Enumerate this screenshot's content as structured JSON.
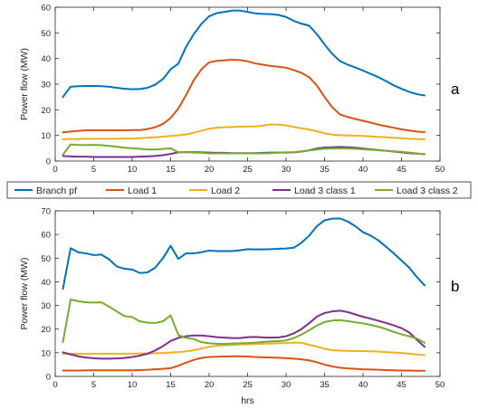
{
  "colors": {
    "Branch pf": "#0072bd",
    "Load 1": "#d95319",
    "Load 2": "#edb120",
    "Load 3 class 1": "#7e2f8e",
    "Load 3 class 2": "#77ac30"
  },
  "legend": {
    "entries": [
      "Branch pf",
      "Load 1",
      "Load 2",
      "Load 3 class 1",
      "Load 3 class 2"
    ],
    "placement": "between-panels"
  },
  "chart_data": [
    {
      "type": "line",
      "panel_label": "a",
      "ylabel": "Power flow (MW)",
      "xlabel": "",
      "xlim": [
        0,
        50
      ],
      "ylim": [
        0,
        60
      ],
      "xticks": [
        0,
        5,
        10,
        15,
        20,
        25,
        30,
        35,
        40,
        45,
        50
      ],
      "yticks": [
        0,
        10,
        20,
        30,
        40,
        50,
        60
      ],
      "grid": false,
      "x": [
        1,
        2,
        3,
        4,
        5,
        6,
        7,
        8,
        9,
        10,
        11,
        12,
        13,
        14,
        15,
        16,
        17,
        18,
        19,
        20,
        21,
        22,
        23,
        24,
        25,
        26,
        27,
        28,
        29,
        30,
        31,
        32,
        33,
        34,
        35,
        36,
        37,
        38,
        39,
        40,
        41,
        42,
        43,
        44,
        45,
        46,
        47,
        48
      ],
      "series": [
        {
          "name": "Branch pf",
          "values": [
            25,
            29,
            29.2,
            29.3,
            29.3,
            29.2,
            29,
            28.6,
            28.2,
            28,
            28.1,
            28.6,
            29.8,
            32,
            35.8,
            38,
            44.5,
            49.5,
            53.5,
            56.5,
            57.7,
            58.2,
            58.7,
            58.7,
            58.2,
            57.6,
            57.4,
            57.3,
            57,
            56.2,
            54.7,
            53.6,
            52.8,
            49.5,
            45.5,
            41.8,
            39,
            37.6,
            36.5,
            35.3,
            34,
            32.7,
            31.2,
            29.5,
            28.2,
            27,
            26.1,
            25.6
          ]
        },
        {
          "name": "Load 1",
          "values": [
            11.2,
            11.5,
            11.8,
            12,
            12,
            12,
            12,
            12,
            12,
            12.1,
            12.1,
            12.5,
            13.2,
            14.5,
            16.8,
            20.5,
            25.7,
            31.5,
            35.8,
            38.5,
            39.1,
            39.3,
            39.5,
            39.4,
            38.9,
            38.1,
            37.6,
            37.1,
            36.8,
            36.4,
            35.5,
            34.4,
            32.7,
            29.5,
            25,
            21,
            18.2,
            17.2,
            16.4,
            15.7,
            15,
            14.2,
            13.6,
            13,
            12.4,
            11.9,
            11.5,
            11.3
          ]
        },
        {
          "name": "Load 2",
          "values": [
            8.5,
            8.6,
            8.6,
            8.7,
            8.7,
            8.7,
            8.7,
            8.7,
            8.8,
            8.8,
            8.9,
            9.1,
            9.3,
            9.5,
            9.8,
            10,
            10.4,
            11,
            11.8,
            12.6,
            13,
            13.2,
            13.3,
            13.4,
            13.5,
            13.5,
            13.8,
            14.3,
            14.2,
            13.9,
            13.3,
            12.8,
            12.3,
            11.6,
            10.8,
            10.3,
            10.1,
            10,
            9.9,
            9.8,
            9.6,
            9.4,
            9.3,
            9.1,
            8.9,
            8.7,
            8.6,
            8.5
          ]
        },
        {
          "name": "Load 3 class 1",
          "values": [
            2,
            1.8,
            1.7,
            1.7,
            1.6,
            1.6,
            1.6,
            1.6,
            1.6,
            1.6,
            1.7,
            1.8,
            2,
            2.3,
            2.8,
            3.4,
            3.5,
            3.5,
            3.4,
            3.3,
            3.2,
            3.2,
            3.1,
            3.1,
            3.1,
            3.1,
            3.2,
            3.3,
            3.3,
            3.3,
            3.4,
            3.7,
            4.2,
            4.9,
            5.3,
            5.4,
            5.5,
            5.4,
            5.2,
            4.9,
            4.6,
            4.3,
            4,
            3.7,
            3.4,
            3.1,
            2.9,
            2.7
          ]
        },
        {
          "name": "Load 3 class 2",
          "values": [
            2.5,
            6.5,
            6.3,
            6.2,
            6.3,
            6.2,
            5.9,
            5.6,
            5.2,
            5,
            4.8,
            4.5,
            4.5,
            4.7,
            5,
            3.4,
            3.5,
            3.3,
            3.2,
            3,
            3,
            3,
            3,
            3,
            3,
            3,
            3,
            3.1,
            3.3,
            3.4,
            3.5,
            3.8,
            4.1,
            4.5,
            4.8,
            4.9,
            4.9,
            4.9,
            4.8,
            4.6,
            4.4,
            4.2,
            4,
            3.8,
            3.6,
            3.3,
            3,
            2.6
          ]
        }
      ]
    },
    {
      "type": "line",
      "panel_label": "b",
      "ylabel": "Power flow (MW)",
      "xlabel": "hrs",
      "xlim": [
        0,
        50
      ],
      "ylim": [
        0,
        70
      ],
      "xticks": [
        0,
        5,
        10,
        15,
        20,
        25,
        30,
        35,
        40,
        45,
        50
      ],
      "yticks": [
        0,
        10,
        20,
        30,
        40,
        50,
        60,
        70
      ],
      "grid": false,
      "x": [
        1,
        2,
        3,
        4,
        5,
        6,
        7,
        8,
        9,
        10,
        11,
        12,
        13,
        14,
        15,
        16,
        17,
        18,
        19,
        20,
        21,
        22,
        23,
        24,
        25,
        26,
        27,
        28,
        29,
        30,
        31,
        32,
        33,
        34,
        35,
        36,
        37,
        38,
        39,
        40,
        41,
        42,
        43,
        44,
        45,
        46,
        47,
        48
      ],
      "series": [
        {
          "name": "Branch pf",
          "values": [
            37,
            54.2,
            52.5,
            52,
            51.3,
            51.5,
            49.5,
            46.5,
            45.5,
            45.2,
            43.7,
            44,
            46,
            50,
            55.2,
            49.7,
            52,
            52,
            52.5,
            53.2,
            53,
            53,
            53,
            53.3,
            53.8,
            53.7,
            53.7,
            53.8,
            54,
            54.1,
            54.4,
            56.5,
            59.5,
            63.5,
            66,
            66.7,
            66.8,
            65.5,
            63.5,
            61,
            59.5,
            57.5,
            54.8,
            52,
            49,
            46,
            42,
            38.5
          ]
        },
        {
          "name": "Load 1",
          "values": [
            2.5,
            2.5,
            2.5,
            2.6,
            2.6,
            2.6,
            2.6,
            2.6,
            2.6,
            2.6,
            2.7,
            2.8,
            3,
            3.2,
            3.5,
            4.5,
            5.8,
            7,
            7.8,
            8.2,
            8.3,
            8.4,
            8.5,
            8.5,
            8.4,
            8.2,
            8.1,
            8,
            7.9,
            7.7,
            7.5,
            7.2,
            6.8,
            6,
            5,
            4.2,
            3.7,
            3.4,
            3.2,
            3,
            2.9,
            2.8,
            2.7,
            2.6,
            2.5,
            2.5,
            2.4,
            2.4
          ]
        },
        {
          "name": "Load 2",
          "values": [
            9.5,
            9.6,
            9.6,
            9.6,
            9.6,
            9.6,
            9.6,
            9.6,
            9.6,
            9.6,
            9.7,
            9.7,
            9.8,
            9.9,
            10.1,
            10.3,
            10.6,
            11.1,
            11.8,
            12.5,
            13,
            13.2,
            13.3,
            13.5,
            13.6,
            13.7,
            13.8,
            13.9,
            14,
            14.1,
            14.3,
            14.2,
            13.4,
            12.6,
            11.7,
            11.1,
            10.9,
            10.8,
            10.7,
            10.7,
            10.6,
            10.5,
            10.3,
            10.1,
            9.9,
            9.6,
            9.3,
            9
          ]
        },
        {
          "name": "Load 3 class 1",
          "values": [
            10.2,
            9.3,
            8.5,
            8,
            7.7,
            7.5,
            7.5,
            7.6,
            7.8,
            8.2,
            8.8,
            9.6,
            11,
            12.8,
            15,
            16.3,
            17,
            17.3,
            17.3,
            17,
            16.6,
            16.4,
            16.2,
            16.2,
            16.6,
            16.7,
            16.5,
            16.4,
            16.5,
            17,
            18.2,
            20,
            22.5,
            25.3,
            26.8,
            27.5,
            27.8,
            27.2,
            26.2,
            25.2,
            24.4,
            23.5,
            22.6,
            21.6,
            20.4,
            18.6,
            15.5,
            12.5
          ]
        },
        {
          "name": "Load 3 class 2",
          "values": [
            14.5,
            32.5,
            31.8,
            31.3,
            31.2,
            31.3,
            29.5,
            27.5,
            25.5,
            25.1,
            23.3,
            22.7,
            22.6,
            23.3,
            25.8,
            17.5,
            16.3,
            15.8,
            14.5,
            14,
            13.8,
            13.7,
            13.9,
            14,
            14.1,
            14.3,
            14.6,
            14.8,
            14.9,
            15.2,
            16.2,
            17.7,
            19.5,
            21.5,
            23,
            23.6,
            23.8,
            23.4,
            22.9,
            22.4,
            21.8,
            21,
            20,
            18.8,
            17.8,
            17,
            16,
            14.2
          ]
        }
      ]
    }
  ]
}
